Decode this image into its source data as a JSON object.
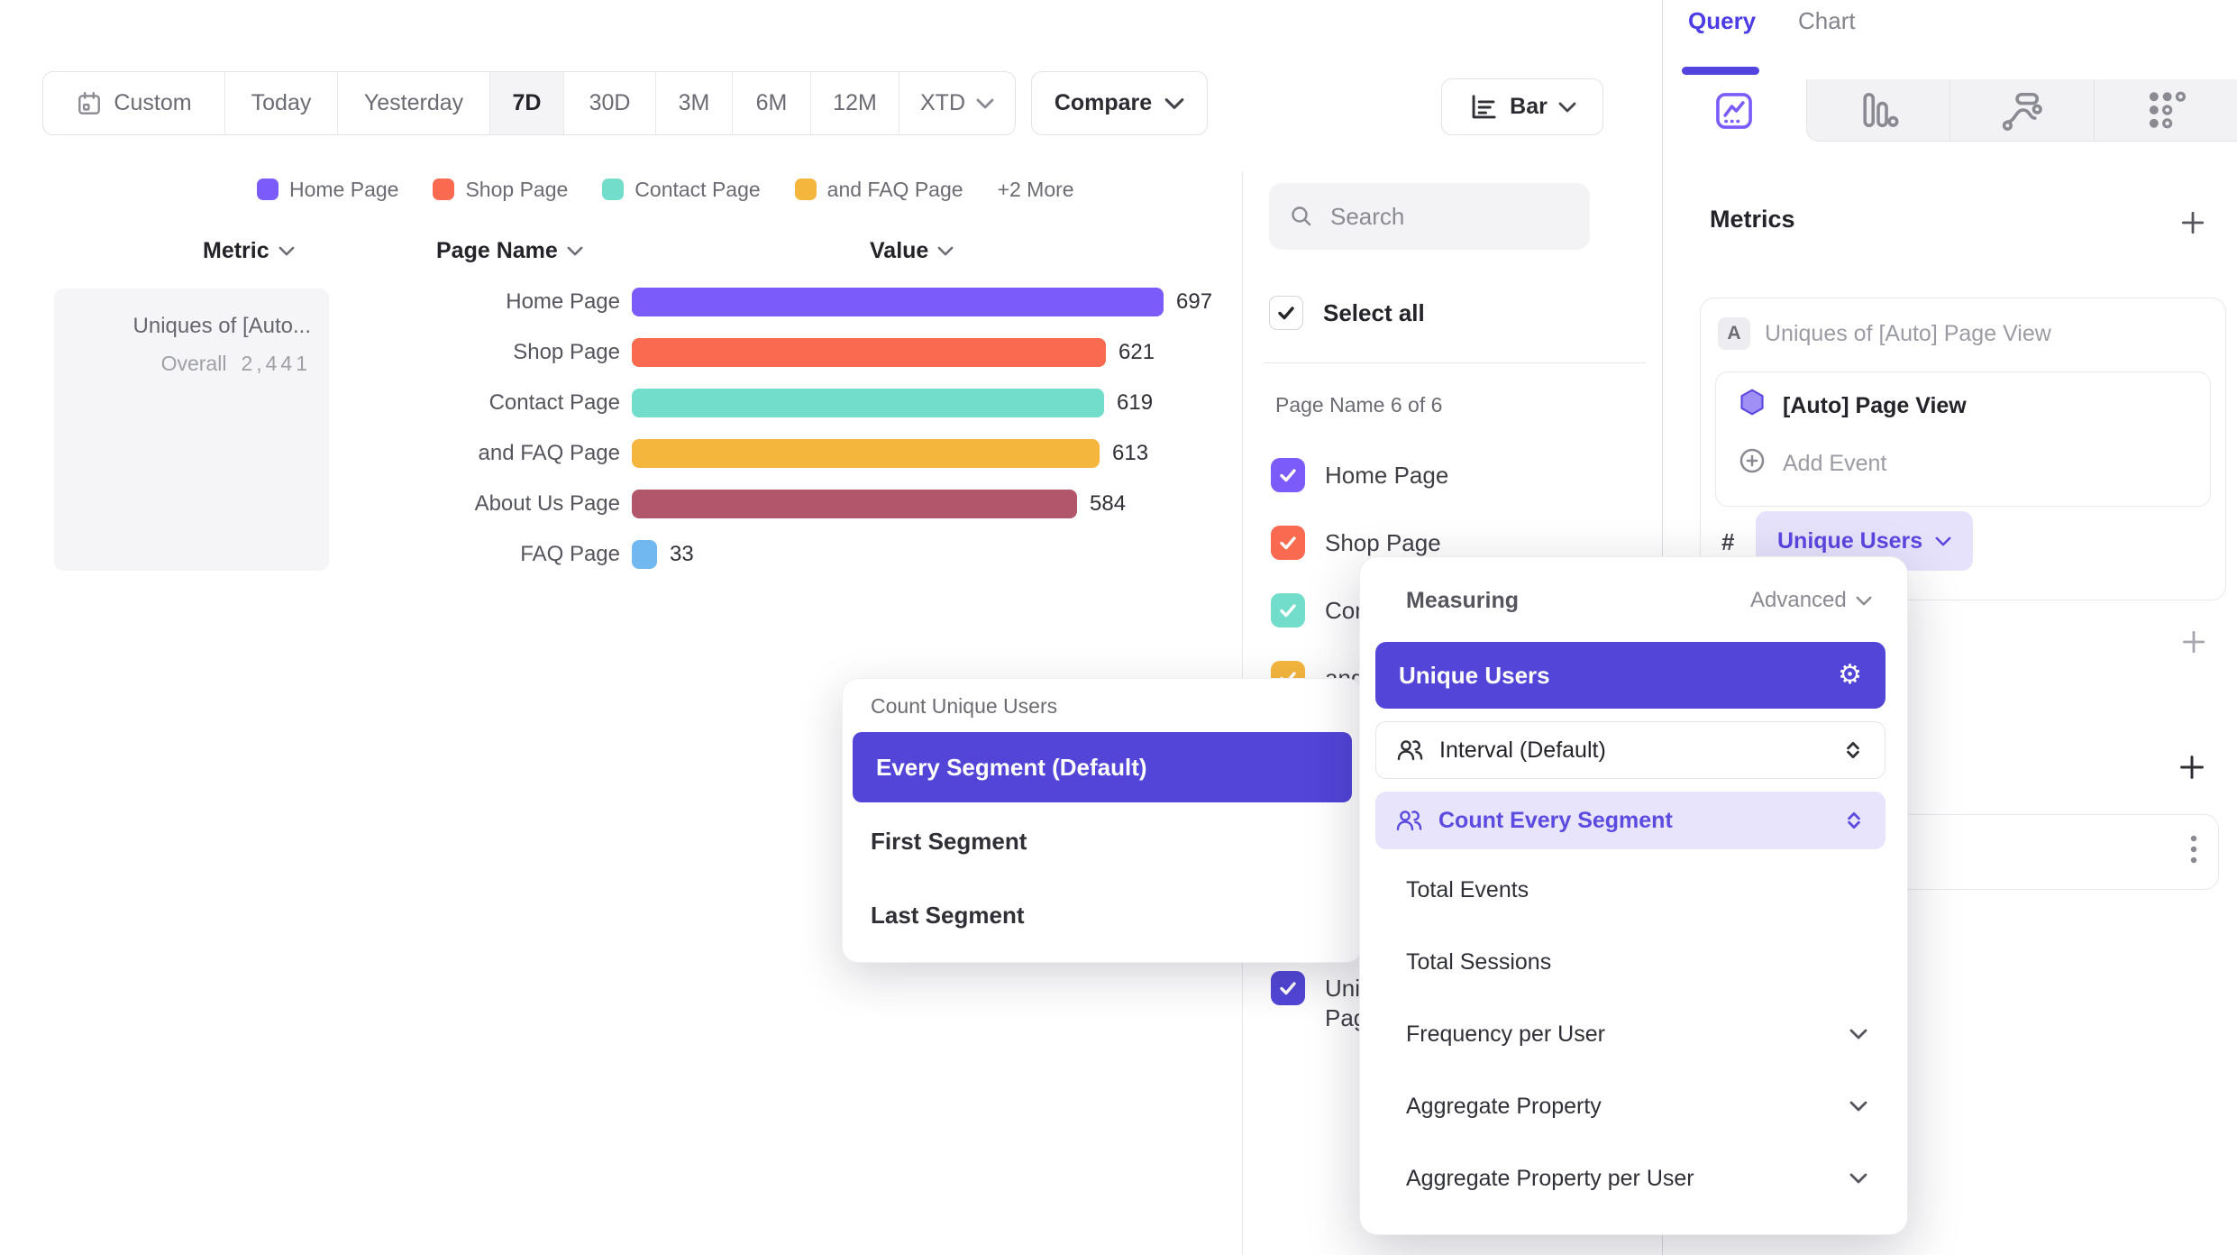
{
  "toolbar": {
    "date_ranges": [
      {
        "label": "Custom",
        "icon": "calendar-icon"
      },
      {
        "label": "Today"
      },
      {
        "label": "Yesterday"
      },
      {
        "label": "7D",
        "active": true
      },
      {
        "label": "30D"
      },
      {
        "label": "3M"
      },
      {
        "label": "6M"
      },
      {
        "label": "12M"
      },
      {
        "label": "XTD",
        "chevron": true
      }
    ],
    "active_range": "7D",
    "compare_label": "Compare",
    "chart_type_label": "Bar"
  },
  "legend": {
    "items": [
      {
        "label": "Home Page",
        "color": "#7b5cfa"
      },
      {
        "label": "Shop Page",
        "color": "#f96a50"
      },
      {
        "label": "Contact Page",
        "color": "#72ddcb"
      },
      {
        "label": "and FAQ Page",
        "color": "#f4b63d"
      }
    ],
    "more_label": "+2 More"
  },
  "table": {
    "headers": {
      "metric": "Metric",
      "page_name": "Page Name",
      "value": "Value"
    },
    "metric_card": {
      "title": "Uniques of [Auto...",
      "overall_label": "Overall",
      "overall_value": "2,441"
    }
  },
  "chart_data": {
    "type": "bar",
    "orientation": "horizontal",
    "title": "Uniques of [Auto] Page View",
    "categories": [
      "Home Page",
      "Shop Page",
      "Contact Page",
      "and FAQ Page",
      "About Us Page",
      "FAQ Page"
    ],
    "values": [
      697,
      621,
      619,
      613,
      584,
      33
    ],
    "colors": [
      "#7b5cfa",
      "#f96a50",
      "#72ddcb",
      "#f4b63d",
      "#b2566b",
      "#72b8f0"
    ],
    "overall_total": 2441,
    "xlim": [
      0,
      750
    ],
    "value_labels": true,
    "legend_position": "top"
  },
  "filter_panel": {
    "search_placeholder": "Search",
    "select_all_label": "Select all",
    "group_label": "Page Name 6 of 6",
    "items": [
      {
        "label": "Home Page",
        "color": "#7b5cfa",
        "checked": true
      },
      {
        "label": "Shop Page",
        "color": "#f96a50",
        "checked": true
      },
      {
        "label": "Contact Page",
        "color": "#72ddcb",
        "checked": true
      },
      {
        "label": "and FAQ Page",
        "color": "#f4b63d",
        "checked": true
      },
      {
        "label": "About Us Page",
        "color": "#b2566b",
        "checked": true
      },
      {
        "label": "FAQ Page",
        "color": "#72b8f0",
        "checked": true
      }
    ],
    "metric_item": {
      "label": "Uniques of [Auto] Page View",
      "color": "#5246d7",
      "checked": true
    }
  },
  "query_panel": {
    "tabs": [
      {
        "label": "Query",
        "active": true
      },
      {
        "label": "Chart",
        "active": false
      }
    ],
    "report_tabs": [
      "insights-chart-icon",
      "funnel-bars-icon",
      "flows-icon",
      "retention-dots-icon"
    ],
    "metrics_title": "Metrics",
    "metric_card": {
      "badge": "A",
      "title": "Uniques of [Auto] Page View",
      "event_label": "[Auto] Page View",
      "add_event_label": "Add Event",
      "counter_symbol": "#",
      "measure_label": "Unique Users"
    }
  },
  "measuring_menu": {
    "title": "Measuring",
    "advanced_label": "Advanced",
    "selected_label": "Unique Users",
    "rows": [
      {
        "label": "Interval (Default)",
        "style": "outlined"
      },
      {
        "label": "Count Every Segment",
        "style": "highlighted"
      }
    ],
    "items": [
      {
        "label": "Total Events",
        "expandable": false
      },
      {
        "label": "Total Sessions",
        "expandable": false
      },
      {
        "label": "Frequency per User",
        "expandable": true
      },
      {
        "label": "Aggregate Property",
        "expandable": true
      },
      {
        "label": "Aggregate Property per User",
        "expandable": true
      }
    ]
  },
  "segment_menu": {
    "title": "Count Unique Users",
    "selected_label": "Every Segment (Default)",
    "options": [
      "First Segment",
      "Last Segment"
    ]
  },
  "icons": {
    "gear": "⚙"
  },
  "colors": {
    "accent_purple": "#7b5cfa",
    "selected_indigo": "#5245d8",
    "pill_bg": "#e7e2fc",
    "pill_text": "#5b46e0"
  }
}
